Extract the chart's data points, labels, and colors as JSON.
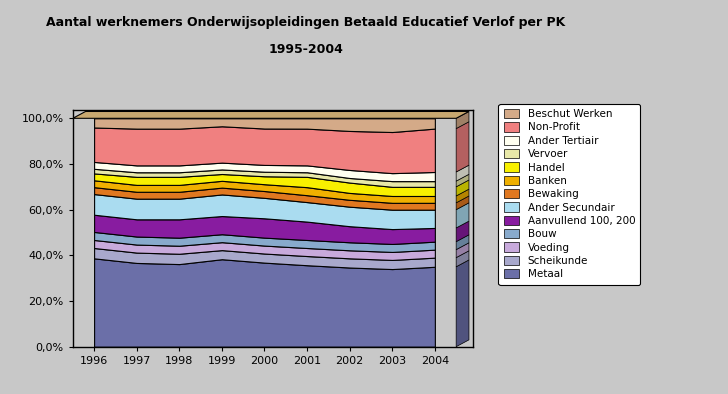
{
  "title_line1": "Aantal werknemers Onderwijsopleidingen Betaald Educatief Verlof per PK",
  "title_line2": "1995-2004",
  "years": [
    1996,
    1997,
    1998,
    1999,
    2000,
    2001,
    2002,
    2003,
    2004
  ],
  "categories": [
    "Metaal",
    "Scheikunde",
    "Voeding",
    "Bouw",
    "Aanvullend 100, 200",
    "Ander Secundair",
    "Bewaking",
    "Banken",
    "Handel",
    "Vervoer",
    "Ander Tertiair",
    "Non-Profit",
    "Beschut Werken"
  ],
  "colors": [
    "#6B6FA8",
    "#A8A8CC",
    "#C8AADC",
    "#88AACC",
    "#881CA0",
    "#AADCF0",
    "#E07820",
    "#F0B000",
    "#F8F000",
    "#E8E8A8",
    "#FFFFF0",
    "#F08080",
    "#D4AA88"
  ],
  "data": {
    "Metaal": [
      38.5,
      36.5,
      36.0,
      38.5,
      37.0,
      35.5,
      34.5,
      34.0,
      35.0
    ],
    "Scheikunde": [
      4.5,
      4.5,
      4.5,
      4.0,
      4.0,
      4.0,
      4.0,
      4.0,
      4.0
    ],
    "Voeding": [
      3.5,
      3.5,
      3.5,
      3.5,
      3.5,
      3.5,
      3.5,
      3.5,
      3.5
    ],
    "Bouw": [
      3.5,
      3.5,
      3.5,
      3.5,
      3.5,
      3.5,
      3.5,
      3.5,
      3.5
    ],
    "Aanvullend 100, 200": [
      7.5,
      7.5,
      8.0,
      8.0,
      8.5,
      8.0,
      7.0,
      6.5,
      6.0
    ],
    "Ander Secundair": [
      9.0,
      9.0,
      9.0,
      9.5,
      9.0,
      8.5,
      8.5,
      8.5,
      8.0
    ],
    "Bewaking": [
      3.0,
      3.0,
      3.0,
      3.0,
      3.0,
      3.0,
      3.0,
      3.0,
      3.0
    ],
    "Banken": [
      3.0,
      3.0,
      3.0,
      3.0,
      3.0,
      3.5,
      3.0,
      3.0,
      3.0
    ],
    "Handel": [
      3.0,
      3.5,
      3.5,
      3.0,
      3.5,
      4.5,
      4.5,
      4.0,
      4.0
    ],
    "Vervoer": [
      2.0,
      2.0,
      2.0,
      2.0,
      2.0,
      2.0,
      2.0,
      2.5,
      2.5
    ],
    "Ander Tertiair": [
      3.0,
      3.0,
      3.0,
      3.0,
      3.0,
      3.0,
      3.5,
      3.5,
      4.0
    ],
    "Non-Profit": [
      15.0,
      16.0,
      16.0,
      16.0,
      16.0,
      16.0,
      17.0,
      18.0,
      19.0
    ],
    "Beschut Werken": [
      4.0,
      4.5,
      4.5,
      3.5,
      4.5,
      4.5,
      5.5,
      6.0,
      4.5
    ]
  },
  "ylim": [
    0,
    100
  ],
  "yticks": [
    0,
    20,
    40,
    60,
    80,
    100
  ],
  "ytick_labels": [
    "0,0%",
    "20,0%",
    "40,0%",
    "60,0%",
    "80,0%",
    "100,0%"
  ],
  "bg_color": "#C8C8C8",
  "plot_bg_color": "#C8C8C8"
}
